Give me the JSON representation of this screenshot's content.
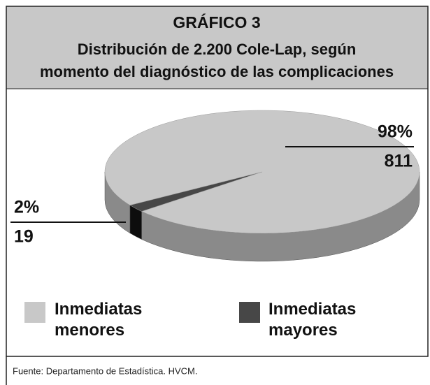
{
  "chart_data": {
    "type": "pie",
    "title": "GRÁFICO 3",
    "subtitle": [
      "Distribución de 2.200 Cole-Lap, según",
      "momento del diagnóstico de las complicaciones"
    ],
    "categories": [
      "Inmediatas menores",
      "Inmediatas mayores"
    ],
    "values": [
      98,
      2
    ],
    "value_labels": [
      "98%",
      "2%"
    ],
    "counts": [
      811,
      19
    ],
    "colors": [
      "#c8c8c8",
      "#474747"
    ],
    "side_colors": [
      "#8a8a8a",
      "#0d0d0d"
    ],
    "source": "Fuente: Departamento de Estadística. HVCM."
  }
}
